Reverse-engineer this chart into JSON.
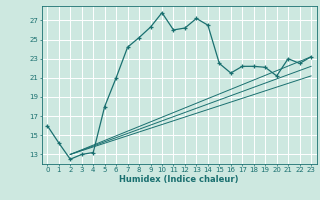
{
  "xlabel": "Humidex (Indice chaleur)",
  "background_color": "#cde8e0",
  "grid_color": "#ffffff",
  "line_color": "#1a7070",
  "xlim": [
    -0.5,
    23.5
  ],
  "ylim": [
    12.0,
    28.5
  ],
  "xticks": [
    0,
    1,
    2,
    3,
    4,
    5,
    6,
    7,
    8,
    9,
    10,
    11,
    12,
    13,
    14,
    15,
    16,
    17,
    18,
    19,
    20,
    21,
    22,
    23
  ],
  "yticks": [
    13,
    15,
    17,
    19,
    21,
    23,
    25,
    27
  ],
  "main_line_x": [
    0,
    1,
    2,
    3,
    4,
    5,
    6,
    7,
    8,
    9,
    10,
    11,
    12,
    13,
    14,
    15,
    16,
    17,
    18,
    19,
    20,
    21,
    22,
    23
  ],
  "main_line_y": [
    16.0,
    14.2,
    12.5,
    13.0,
    13.2,
    18.0,
    21.0,
    24.2,
    25.2,
    26.3,
    27.8,
    26.0,
    26.2,
    27.2,
    26.5,
    22.5,
    21.5,
    22.2,
    22.2,
    22.1,
    21.2,
    23.0,
    22.5,
    23.2
  ],
  "diag_lines": [
    {
      "x": [
        2,
        23
      ],
      "y": [
        13.0,
        23.2
      ]
    },
    {
      "x": [
        2,
        23
      ],
      "y": [
        13.0,
        22.2
      ]
    },
    {
      "x": [
        2,
        23
      ],
      "y": [
        13.0,
        21.2
      ]
    }
  ]
}
